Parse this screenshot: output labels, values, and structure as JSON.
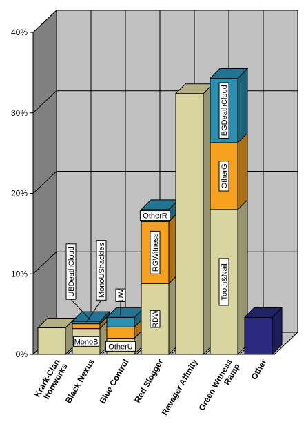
{
  "chart_data": {
    "type": "bar",
    "subtype": "stacked-3d",
    "title": "",
    "xlabel": "",
    "ylabel": "",
    "ylim": [
      0,
      40
    ],
    "y_ticks": [
      "0%",
      "10%",
      "20%",
      "30%",
      "40%"
    ],
    "grid": true,
    "categories": [
      "Krark-Clan Ironworks",
      "Black Nexus",
      "Blue Control",
      "Red Slogger",
      "Ravager Affinity",
      "Green Witness Ramp",
      "Other"
    ],
    "segments": [
      [
        {
          "value": 3.3
        }
      ],
      [
        {
          "value": 3.2,
          "label": "MonoB",
          "color": "#d8d5a0"
        },
        {
          "value": 0.6,
          "label": "MonoUShackles",
          "label_outside": true,
          "color": "#f6a020"
        },
        {
          "value": 0.3,
          "label": "UBDeathCloud",
          "label_outside": true,
          "color": "#2a8fb0"
        }
      ],
      [
        {
          "value": 2.0,
          "label": "OtherU",
          "color": "#d8d5a0"
        },
        {
          "value": 1.4,
          "color": "#f6a020"
        },
        {
          "value": 1.2,
          "label": "UW",
          "label_outside": true,
          "color": "#2a8fb0"
        }
      ],
      [
        {
          "value": 8.8,
          "label": "RDW",
          "color": "#d8d5a0"
        },
        {
          "value": 7.7,
          "label": "RGWitness",
          "color": "#f6a020"
        },
        {
          "value": 1.5,
          "label": "OtherR",
          "color": "#2a8fb0"
        }
      ],
      [
        {
          "value": 32.4,
          "color": "#d8d5a0"
        }
      ],
      [
        {
          "value": 18.0,
          "label": "Tooth&Nail",
          "color": "#d8d5a0"
        },
        {
          "value": 8.3,
          "label": "OtherG",
          "color": "#f6a020"
        },
        {
          "value": 8.0,
          "label": "BGDeathCloud",
          "color": "#2a8fb0"
        }
      ],
      [
        {
          "value": 4.6,
          "color": "#2a2a80"
        }
      ]
    ],
    "colors": {
      "base": "#d8d5a0",
      "orange": "#f6a020",
      "blue": "#2a8fb0",
      "other": "#2a2a80"
    }
  }
}
